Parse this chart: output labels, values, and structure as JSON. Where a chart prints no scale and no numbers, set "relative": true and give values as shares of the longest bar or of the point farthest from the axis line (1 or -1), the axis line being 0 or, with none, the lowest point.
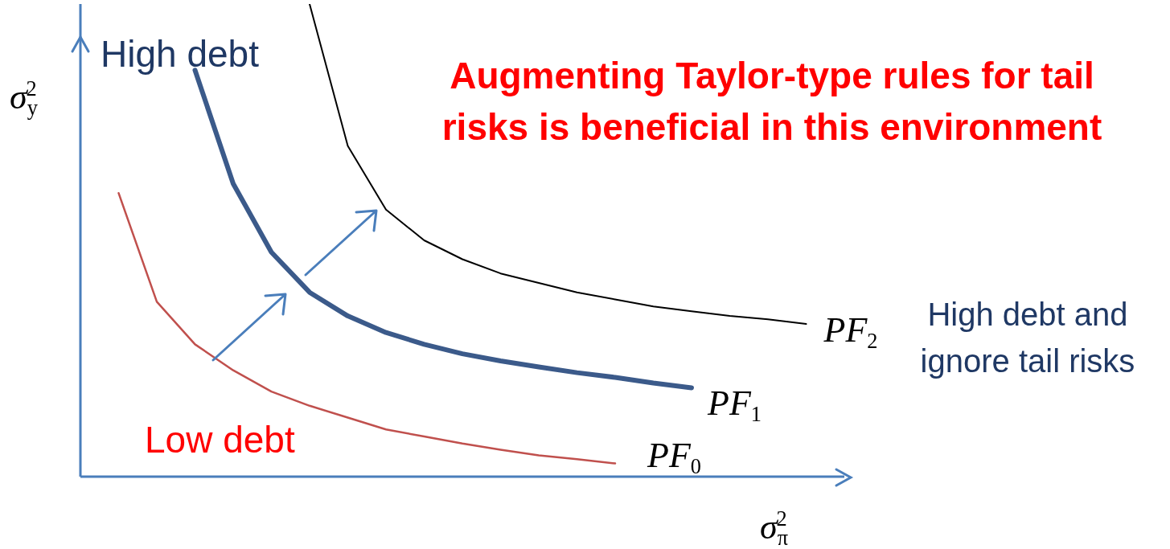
{
  "chart_data": {
    "type": "line",
    "relative": true,
    "title": "Augmenting Taylor-type rules for tail risks is beneficial in this environment",
    "xlabel": "σ$_{π}$$^{2}$",
    "ylabel": "σ$_{y}$$^{2}$",
    "marker": "none",
    "annotations": [
      "High debt",
      "Low debt",
      "High debt and ignore tail risks"
    ],
    "categories": [
      null,
      null,
      null,
      null,
      null,
      null,
      null,
      null,
      null,
      null,
      null,
      null,
      null,
      null,
      null,
      null,
      null,
      null,
      null,
      null,
      null
    ],
    "series": [
      {
        "name": "PF$_{0}$",
        "color": "#c0504d",
        "values": [
          null,
          0.6,
          0.37,
          0.28,
          0.225,
          0.18,
          0.15,
          0.125,
          0.1,
          0.085,
          0.07,
          0.057,
          0.045,
          0.037,
          0.028,
          null,
          null,
          null,
          null,
          null,
          null
        ]
      },
      {
        "name": "PF$_{1}$",
        "color": "#3b5a8a",
        "values": [
          null,
          null,
          null,
          0.86,
          0.62,
          0.475,
          0.39,
          0.34,
          0.305,
          0.28,
          0.26,
          0.245,
          0.232,
          0.22,
          0.21,
          0.198,
          0.188,
          null,
          null,
          null,
          null
        ]
      },
      {
        "name": "PF$_{2}$",
        "color": "#000000",
        "values": [
          null,
          null,
          null,
          null,
          null,
          null,
          1,
          0.7,
          0.565,
          0.5,
          0.46,
          0.43,
          0.41,
          0.39,
          0.375,
          0.36,
          0.35,
          0.34,
          0.333,
          0.323,
          null
        ]
      }
    ]
  }
}
